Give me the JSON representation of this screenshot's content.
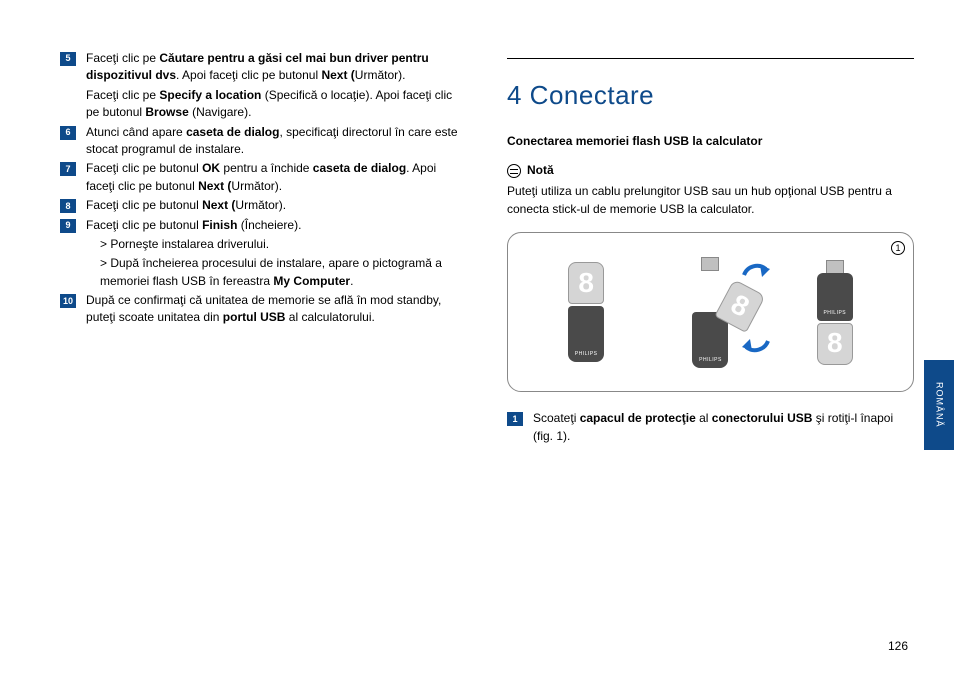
{
  "left": {
    "steps": [
      {
        "n": "5",
        "body": "Faceţi clic pe <b>Căutare pentru a găsi cel mai bun driver pentru dispozitivul dvs</b>. Apoi faceţi clic pe butonul <b>Next (</b>Următor).",
        "sub": "Faceţi clic pe <b>Specify a location</b> (Specifică o locaţie). Apoi faceţi clic pe butonul <b>Browse</b> (Navigare)."
      },
      {
        "n": "6",
        "body": "Atunci când apare <b>caseta de dialog</b>, specificaţi directorul în care este stocat programul de instalare."
      },
      {
        "n": "7",
        "body": "Faceţi clic pe butonul <b>OK</b> pentru a închide <b>caseta de dialog</b>. Apoi faceţi clic pe butonul <b>Next (</b>Următor)."
      },
      {
        "n": "8",
        "body": "Faceţi clic pe butonul <b>Next (</b>Următor)."
      },
      {
        "n": "9",
        "body": "Faceţi clic pe butonul <b>Finish</b> (Încheiere).",
        "extra": [
          "> Porneşte instalarea driverului.",
          "> După încheierea procesului de instalare, apare o pictogramă a memoriei flash USB în fereastra <b>My Computer</b>."
        ]
      },
      {
        "n": "10",
        "body": "După ce confirmaţi că unitatea de memorie se află în mod standby, puteţi scoate unitatea din <b>portul USB</b> al calculatorului."
      }
    ]
  },
  "right": {
    "heading": "4 Conectare",
    "subheading": "Conectarea memoriei flash USB la calculator",
    "note_label": "Notă",
    "note_text": "Puteţi utiliza un cablu prelungitor USB sau un hub opţional USB pentru a conecta stick-ul de memorie USB la calculator.",
    "fig_number": "1",
    "usb_digit": "8",
    "usb_brand": "PHILIPS",
    "step1_n": "1",
    "step1_body": "Scoateţi <b>capacul de protecţie</b> al <b>conectorului USB</b> şi rotiţi-l înapoi (fig. 1)."
  },
  "tab_label": "ROMÂNĂ",
  "page_number": "126",
  "colors": {
    "accent": "#0e4a8a",
    "arrow": "#1968c4"
  }
}
